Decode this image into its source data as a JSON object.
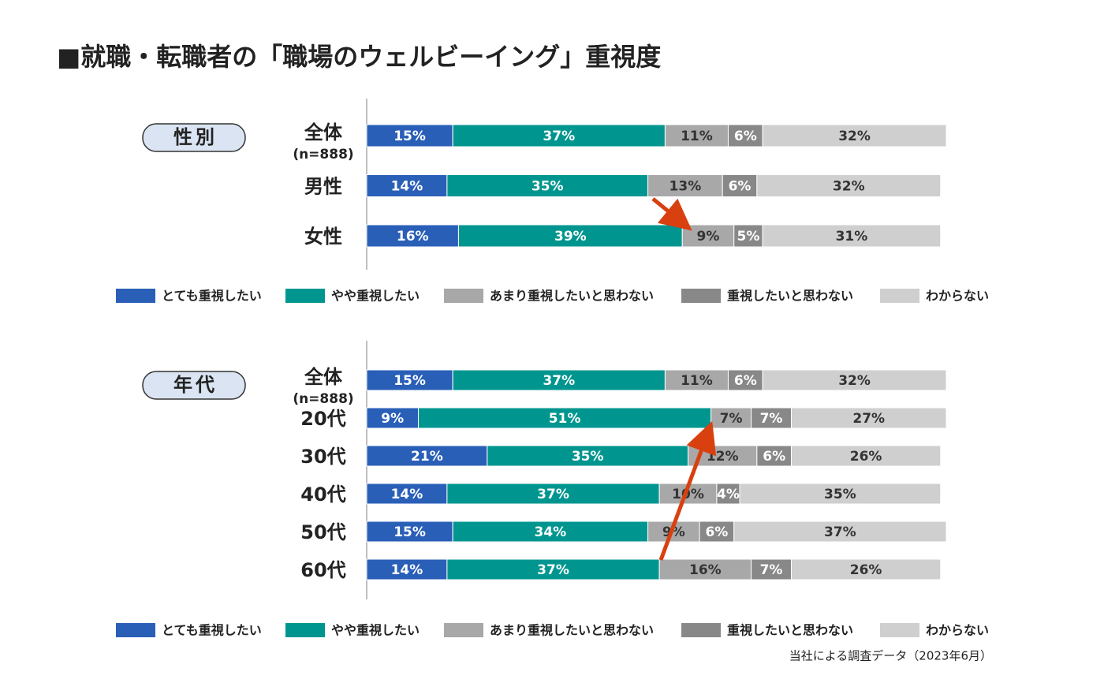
{
  "title": "■就職・転職者の「職場のウェルビーイング」重視度",
  "source": "当社による調査データ（2023年6月）",
  "chart_data": [
    {
      "type": "bar",
      "orientation": "horizontal",
      "stacked": true,
      "group_label": "性別",
      "categories": [
        "全体",
        "男性",
        "女性"
      ],
      "category_note": "(n=888)",
      "xlim": [
        0,
        101
      ],
      "series": [
        {
          "name": "とても重視したい",
          "color": "#2a5fb8",
          "values": [
            15,
            14,
            16
          ],
          "value_labels": [
            "15%",
            "14%",
            "16%"
          ]
        },
        {
          "name": "やや重視したい",
          "color": "#00968f",
          "values": [
            37,
            35,
            39
          ],
          "value_labels": [
            "37%",
            "35%",
            "39%"
          ]
        },
        {
          "name": "あまり重視したいと思わない",
          "color": "#a8a8a8",
          "values": [
            11,
            13,
            9
          ],
          "value_labels": [
            "11%",
            "13%",
            "9%"
          ]
        },
        {
          "name": "重視したいと思わない",
          "color": "#888888",
          "values": [
            6,
            6,
            5
          ],
          "value_labels": [
            "6%",
            "6%",
            "5%"
          ]
        },
        {
          "name": "わからない",
          "color": "#cfcfcf",
          "values": [
            32,
            32,
            31
          ],
          "value_labels": [
            "32%",
            "32%",
            "31%"
          ]
        }
      ]
    },
    {
      "type": "bar",
      "orientation": "horizontal",
      "stacked": true,
      "group_label": "年代",
      "categories": [
        "全体",
        "20代",
        "30代",
        "40代",
        "50代",
        "60代"
      ],
      "category_note": "(n=888)",
      "xlim": [
        0,
        101
      ],
      "series": [
        {
          "name": "とても重視したい",
          "color": "#2a5fb8",
          "values": [
            15,
            9,
            21,
            14,
            15,
            14
          ],
          "value_labels": [
            "15%",
            "9%",
            "21%",
            "14%",
            "15%",
            "14%"
          ]
        },
        {
          "name": "やや重視したい",
          "color": "#00968f",
          "values": [
            37,
            51,
            35,
            37,
            34,
            37
          ],
          "value_labels": [
            "37%",
            "51%",
            "35%",
            "37%",
            "34%",
            "37%"
          ]
        },
        {
          "name": "あまり重視したいと思わない",
          "color": "#a8a8a8",
          "values": [
            11,
            7,
            12,
            10,
            9,
            16
          ],
          "value_labels": [
            "11%",
            "7%",
            "12%",
            "10%",
            "9%",
            "16%"
          ]
        },
        {
          "name": "重視したいと思わない",
          "color": "#888888",
          "values": [
            6,
            7,
            6,
            4,
            6,
            7
          ],
          "value_labels": [
            "6%",
            "7%",
            "6%",
            "4%",
            "6%",
            "7%"
          ]
        },
        {
          "name": "わからない",
          "color": "#cfcfcf",
          "values": [
            32,
            27,
            26,
            35,
            37,
            26
          ],
          "value_labels": [
            "32%",
            "27%",
            "26%",
            "35%",
            "37%",
            "26%"
          ]
        }
      ]
    }
  ]
}
